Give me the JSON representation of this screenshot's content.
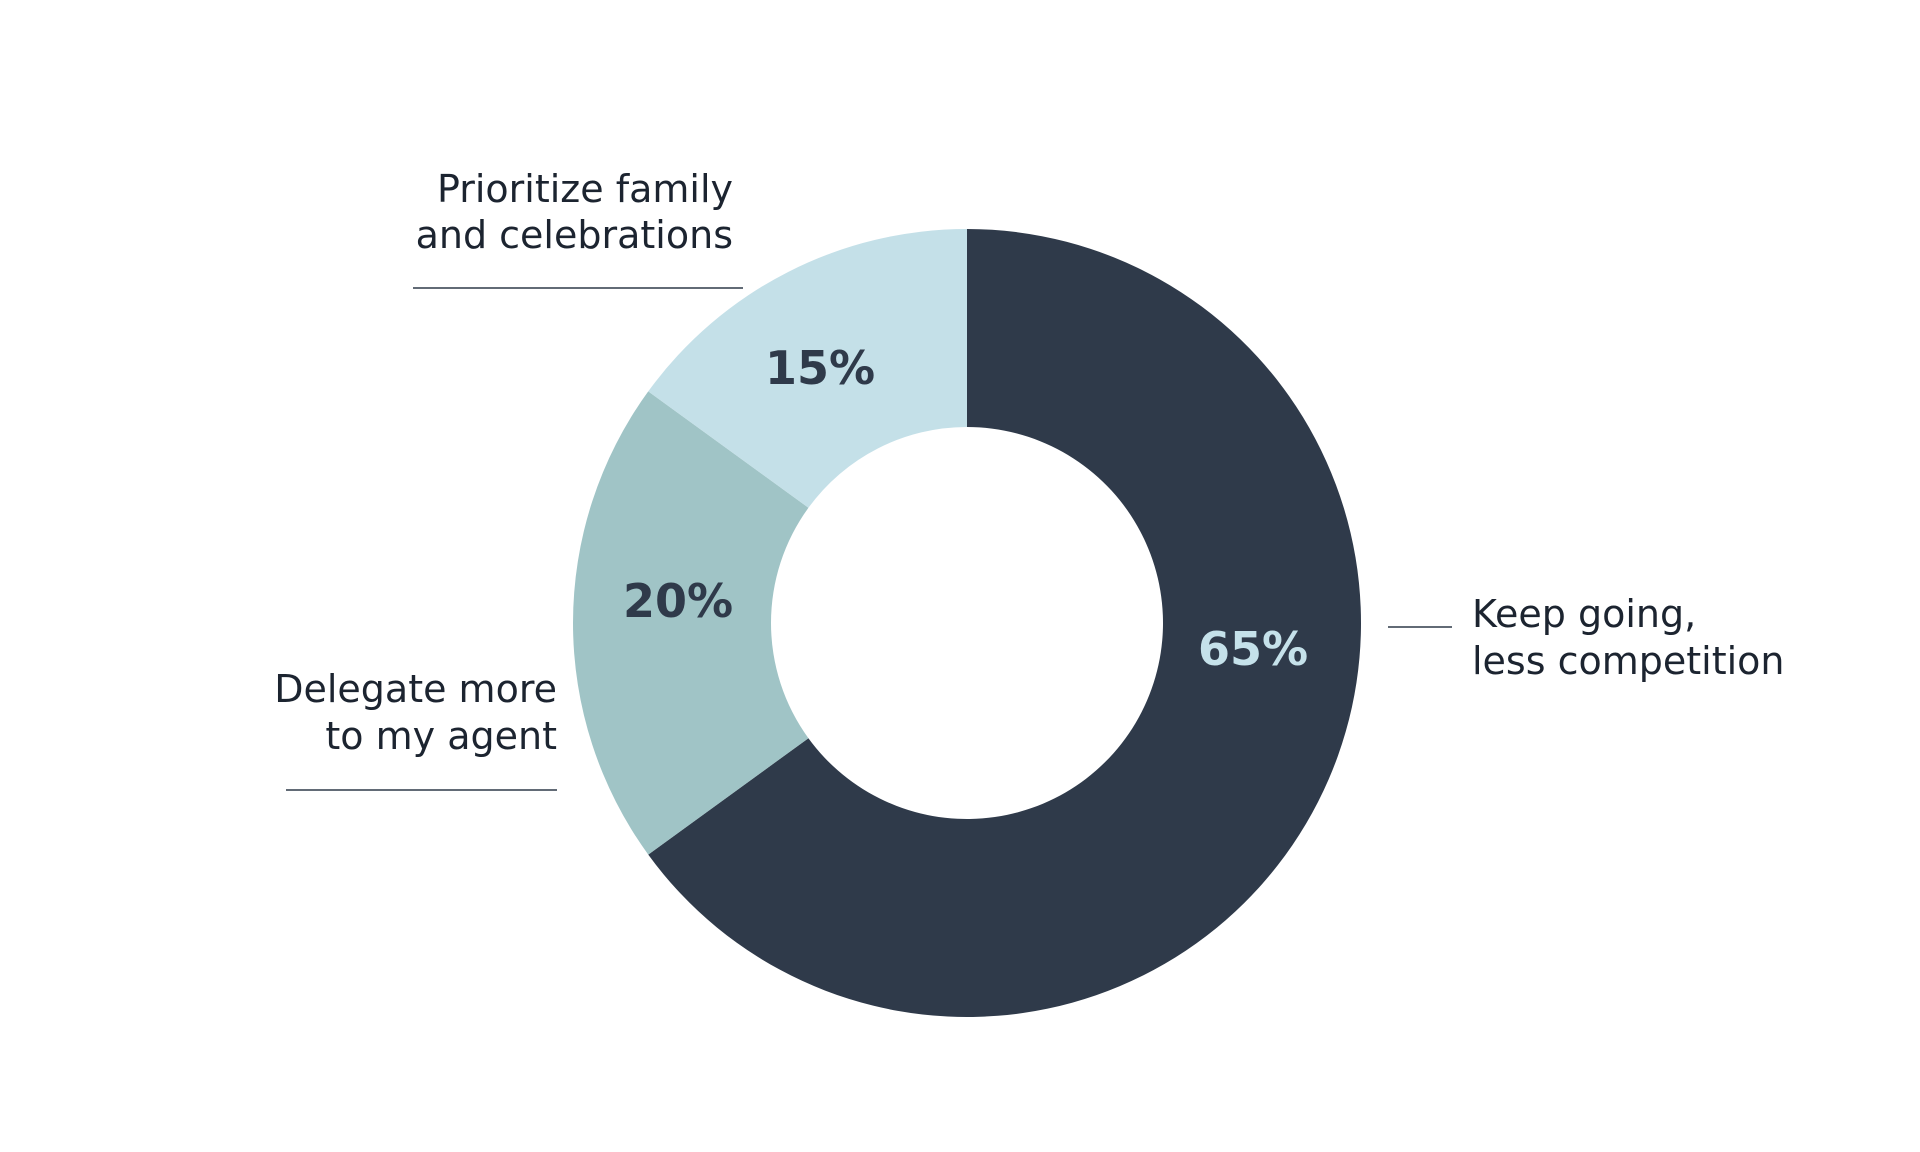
{
  "chart_data": {
    "type": "pie",
    "donut": true,
    "title": "",
    "slices": [
      {
        "label_lines": [
          "Keep going,",
          "less competition"
        ],
        "value": 65,
        "value_label": "65%",
        "color": "#2f3a4a",
        "value_text_color": "#c5e1ea"
      },
      {
        "label_lines": [
          "Delegate more",
          "to my agent"
        ],
        "value": 20,
        "value_label": "20%",
        "color": "#a0c4c6",
        "value_text_color": "#2f3a4a"
      },
      {
        "label_lines": [
          "Prioritize family",
          "and celebrations"
        ],
        "value": 15,
        "value_label": "15%",
        "color": "#c4e0e8",
        "value_text_color": "#2f3a4a"
      }
    ],
    "start": "12 o'clock",
    "direction": "clockwise"
  }
}
